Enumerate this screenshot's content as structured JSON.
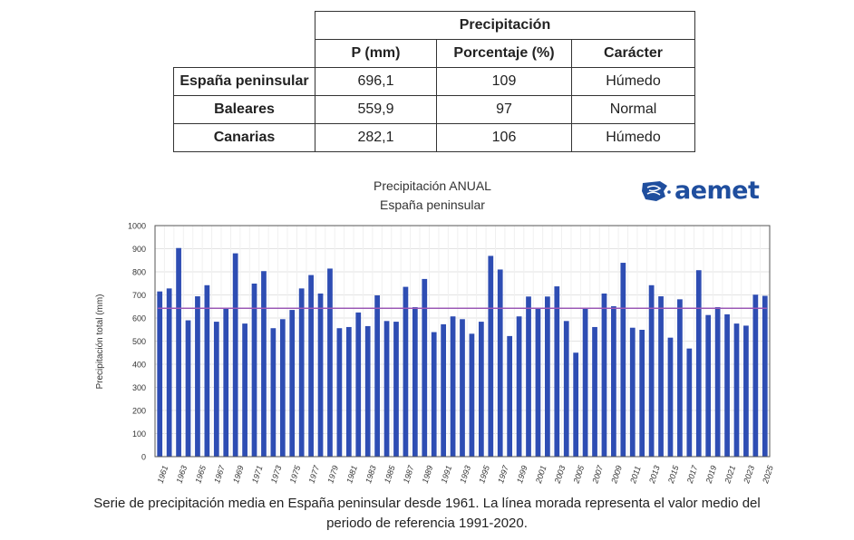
{
  "table": {
    "group_header": "Precipitación",
    "columns": [
      "P (mm)",
      "Porcentaje (%)",
      "Carácter"
    ],
    "rows": [
      {
        "region": "España peninsular",
        "p_mm": "696,1",
        "pct": "109",
        "caracter": "Húmedo"
      },
      {
        "region": "Baleares",
        "p_mm": "559,9",
        "pct": "97",
        "caracter": "Normal"
      },
      {
        "region": "Canarias",
        "p_mm": "282,1",
        "pct": "106",
        "caracter": "Húmedo"
      }
    ]
  },
  "logo": {
    "text": "aemet",
    "color": "#1f4e9e"
  },
  "caption": {
    "line1": "Serie de precipitación media en España peninsular desde 1961. La línea morada representa el valor medio del",
    "line2": "periodo de referencia 1991-2020."
  },
  "chart_data": {
    "type": "bar",
    "title": "Precipitación ANUAL",
    "subtitle": "España peninsular",
    "xlabel": "",
    "ylabel": "Precipitación total (mm)",
    "ylim": [
      0,
      1000
    ],
    "yticks": [
      0,
      100,
      200,
      300,
      400,
      500,
      600,
      700,
      800,
      900,
      1000
    ],
    "grid": true,
    "bar_color": "#2e4db3",
    "reference_line": {
      "label": "Media 1991-2020",
      "value": 642,
      "color": "#9b59b6"
    },
    "x": [
      1961,
      1962,
      1963,
      1964,
      1965,
      1966,
      1967,
      1968,
      1969,
      1970,
      1971,
      1972,
      1973,
      1974,
      1975,
      1976,
      1977,
      1978,
      1979,
      1980,
      1981,
      1982,
      1983,
      1984,
      1985,
      1986,
      1987,
      1988,
      1989,
      1990,
      1991,
      1992,
      1993,
      1994,
      1995,
      1996,
      1997,
      1998,
      1999,
      2000,
      2001,
      2002,
      2003,
      2004,
      2005,
      2006,
      2007,
      2008,
      2009,
      2010,
      2011,
      2012,
      2013,
      2014,
      2015,
      2016,
      2017,
      2018,
      2019,
      2020,
      2021,
      2022,
      2023,
      2024,
      2025
    ],
    "values": [
      715,
      728,
      903,
      590,
      694,
      742,
      584,
      642,
      880,
      576,
      749,
      803,
      556,
      595,
      635,
      728,
      786,
      706,
      814,
      556,
      561,
      624,
      565,
      698,
      587,
      584,
      735,
      647,
      769,
      539,
      573,
      607,
      595,
      532,
      584,
      869,
      810,
      522,
      607,
      693,
      641,
      693,
      737,
      587,
      450,
      642,
      561,
      706,
      651,
      839,
      558,
      549,
      742,
      694,
      515,
      681,
      468,
      807,
      613,
      647,
      616,
      576,
      567,
      701,
      696
    ]
  }
}
